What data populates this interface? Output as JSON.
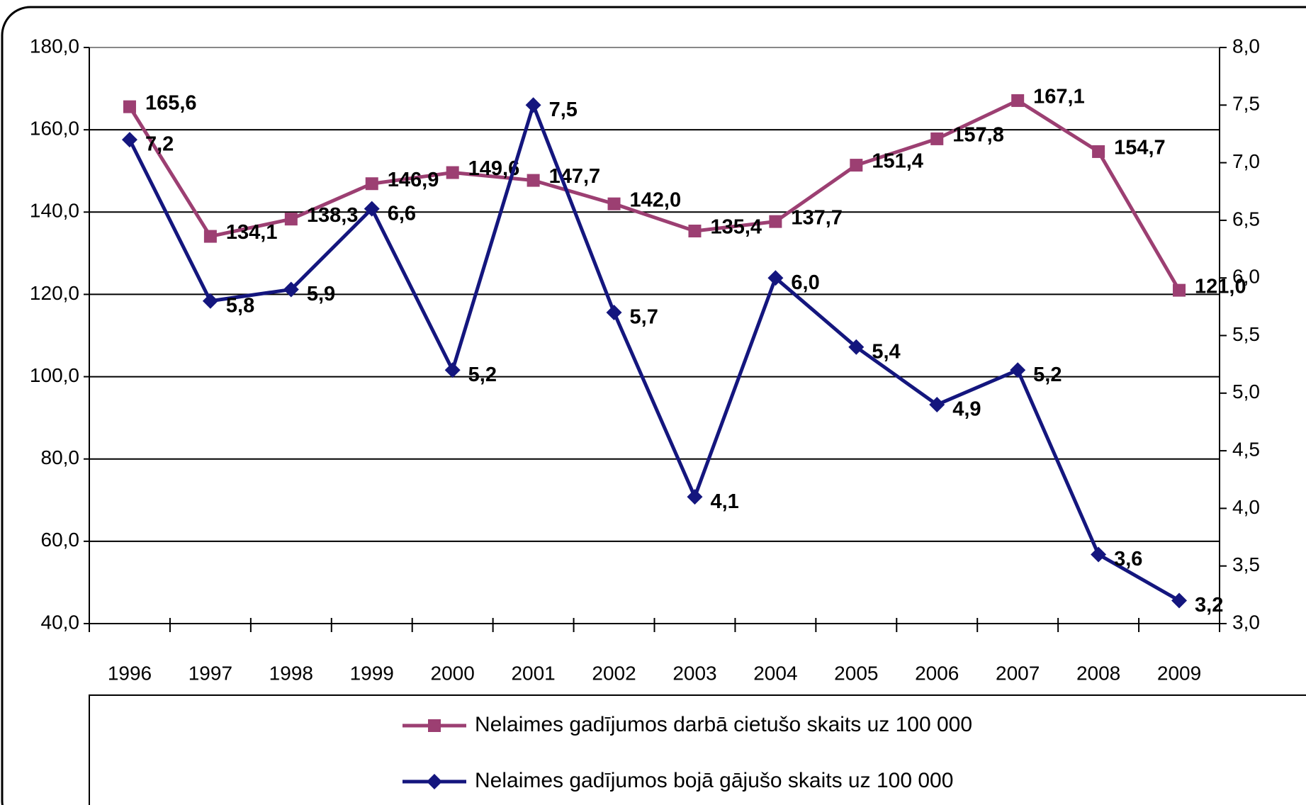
{
  "chart_data": {
    "type": "line",
    "categories": [
      "1996",
      "1997",
      "1998",
      "1999",
      "2000",
      "2001",
      "2002",
      "2003",
      "2004",
      "2005",
      "2006",
      "2007",
      "2008",
      "2009"
    ],
    "ylim": [
      40,
      180
    ],
    "yticks": [
      {
        "value": 40,
        "label": "40,0"
      },
      {
        "value": 60,
        "label": "60,0"
      },
      {
        "value": 80,
        "label": "80,0"
      },
      {
        "value": 100,
        "label": "100,0"
      },
      {
        "value": 120,
        "label": "120,0"
      },
      {
        "value": 140,
        "label": "140,0"
      },
      {
        "value": 160,
        "label": "160,0"
      },
      {
        "value": 180,
        "label": "180,0"
      }
    ],
    "y2lim": [
      3,
      8
    ],
    "y2ticks": [
      {
        "value": 3,
        "label": "3,0"
      },
      {
        "value": 3.5,
        "label": "3,5"
      },
      {
        "value": 4,
        "label": "4,0"
      },
      {
        "value": 4.5,
        "label": "4,5"
      },
      {
        "value": 5,
        "label": "5,0"
      },
      {
        "value": 5.5,
        "label": "5,5"
      },
      {
        "value": 6,
        "label": "6,0"
      },
      {
        "value": 6.5,
        "label": "6,5"
      },
      {
        "value": 7,
        "label": "7,0"
      },
      {
        "value": 7.5,
        "label": "7,5"
      },
      {
        "value": 8,
        "label": "8,0"
      }
    ],
    "grid": true,
    "legend": "bottom",
    "series": [
      {
        "name": "Nelaimes gadījumos darbā cietušo skaits uz 100 000",
        "color": "#9c3f72",
        "marker": "square",
        "values": [
          165.6,
          134.1,
          138.3,
          146.9,
          149.6,
          147.7,
          142.0,
          135.4,
          137.7,
          151.4,
          157.8,
          167.1,
          154.7,
          121.0
        ],
        "value_labels": [
          "165,6",
          "134,1",
          "138,3",
          "146,9",
          "149,6",
          "147,7",
          "142,0",
          "135,4",
          "137,7",
          "151,4",
          "157,8",
          "167,1",
          "154,7",
          "121,0"
        ]
      },
      {
        "name": "Nelaimes gadījumos bojā gājušo skaits uz 100 000",
        "color": "#14167e",
        "marker": "diamond",
        "axis": "y2",
        "values": [
          7.2,
          5.8,
          5.9,
          6.6,
          5.2,
          7.5,
          5.7,
          4.1,
          6.0,
          5.4,
          4.9,
          5.2,
          3.6,
          3.2
        ],
        "value_labels": [
          "7,2",
          "5,8",
          "5,9",
          "6,6",
          "5,2",
          "7,5",
          "5,7",
          "4,1",
          "6,0",
          "5,4",
          "4,9",
          "5,2",
          "3,6",
          "3,2"
        ]
      }
    ]
  }
}
